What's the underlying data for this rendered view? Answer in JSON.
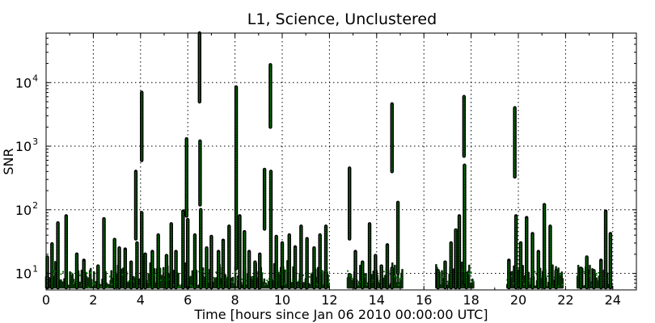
{
  "chart_data": {
    "type": "scatter",
    "title": "L1, Science, Unclustered",
    "xlabel": "Time [hours since Jan 06 2010 00:00:00 UTC]",
    "ylabel": "SNR",
    "xlim": [
      0,
      25
    ],
    "ylim": [
      5.5,
      60000
    ],
    "yscale": "log",
    "grid": true,
    "x_ticks": [
      0,
      2,
      4,
      6,
      8,
      10,
      12,
      14,
      16,
      18,
      20,
      22,
      24
    ],
    "y_ticks": [
      {
        "value": 10,
        "base": "10",
        "exp": "1"
      },
      {
        "value": 100,
        "base": "10",
        "exp": "2"
      },
      {
        "value": 1000,
        "base": "10",
        "exp": "3"
      },
      {
        "value": 10000,
        "base": "10",
        "exp": "4"
      }
    ],
    "marker_color": "#008000",
    "marker_edge_color": "#000000",
    "data_gaps": [
      [
        12.0,
        12.75
      ],
      [
        15.1,
        16.5
      ],
      [
        18.1,
        19.5
      ],
      [
        21.9,
        22.5
      ]
    ],
    "spikes": [
      {
        "x": 0.05,
        "y": [
          6,
          18
        ]
      },
      {
        "x": 0.25,
        "y": [
          6,
          29
        ]
      },
      {
        "x": 0.5,
        "y": [
          6,
          62
        ]
      },
      {
        "x": 0.85,
        "y": [
          6,
          80
        ]
      },
      {
        "x": 1.3,
        "y": [
          6,
          20
        ]
      },
      {
        "x": 1.6,
        "y": [
          6,
          16
        ]
      },
      {
        "x": 2.2,
        "y": [
          6,
          13
        ]
      },
      {
        "x": 2.45,
        "y": [
          6,
          72
        ]
      },
      {
        "x": 2.9,
        "y": [
          6,
          34
        ]
      },
      {
        "x": 3.1,
        "y": [
          6,
          25
        ]
      },
      {
        "x": 3.35,
        "y": [
          6,
          24
        ]
      },
      {
        "x": 3.6,
        "y": [
          6,
          15
        ]
      },
      {
        "x": 3.8,
        "y": [
          35,
          400
        ]
      },
      {
        "x": 3.85,
        "y": [
          6,
          30
        ]
      },
      {
        "x": 4.05,
        "y": [
          600,
          7000
        ]
      },
      {
        "x": 4.05,
        "y": [
          6,
          90
        ]
      },
      {
        "x": 4.2,
        "y": [
          6,
          20
        ]
      },
      {
        "x": 4.5,
        "y": [
          6,
          22
        ]
      },
      {
        "x": 4.75,
        "y": [
          6,
          40
        ]
      },
      {
        "x": 5.1,
        "y": [
          6,
          19
        ]
      },
      {
        "x": 5.3,
        "y": [
          6,
          60
        ]
      },
      {
        "x": 5.5,
        "y": [
          6,
          22
        ]
      },
      {
        "x": 5.8,
        "y": [
          6,
          95
        ]
      },
      {
        "x": 5.95,
        "y": [
          80,
          1300
        ]
      },
      {
        "x": 6.0,
        "y": [
          6,
          70
        ]
      },
      {
        "x": 6.3,
        "y": [
          6,
          40
        ]
      },
      {
        "x": 6.5,
        "y": [
          5000,
          60000
        ]
      },
      {
        "x": 6.52,
        "y": [
          120,
          1200
        ]
      },
      {
        "x": 6.55,
        "y": [
          6,
          100
        ]
      },
      {
        "x": 6.8,
        "y": [
          6,
          25
        ]
      },
      {
        "x": 7.0,
        "y": [
          6,
          38
        ]
      },
      {
        "x": 7.3,
        "y": [
          6,
          22
        ]
      },
      {
        "x": 7.5,
        "y": [
          6,
          33
        ]
      },
      {
        "x": 7.75,
        "y": [
          6,
          55
        ]
      },
      {
        "x": 8.05,
        "y": [
          12,
          8500
        ]
      },
      {
        "x": 8.2,
        "y": [
          6,
          80
        ]
      },
      {
        "x": 8.4,
        "y": [
          6,
          45
        ]
      },
      {
        "x": 8.6,
        "y": [
          6,
          22
        ]
      },
      {
        "x": 8.85,
        "y": [
          6,
          15
        ]
      },
      {
        "x": 9.05,
        "y": [
          6,
          20
        ]
      },
      {
        "x": 9.25,
        "y": [
          50,
          430
        ]
      },
      {
        "x": 9.5,
        "y": [
          2000,
          19000
        ]
      },
      {
        "x": 9.52,
        "y": [
          6,
          400
        ]
      },
      {
        "x": 9.75,
        "y": [
          6,
          38
        ]
      },
      {
        "x": 10.0,
        "y": [
          6,
          30
        ]
      },
      {
        "x": 10.3,
        "y": [
          6,
          40
        ]
      },
      {
        "x": 10.55,
        "y": [
          6,
          26
        ]
      },
      {
        "x": 10.8,
        "y": [
          6,
          55
        ]
      },
      {
        "x": 11.05,
        "y": [
          6,
          35
        ]
      },
      {
        "x": 11.35,
        "y": [
          6,
          25
        ]
      },
      {
        "x": 11.6,
        "y": [
          6,
          40
        ]
      },
      {
        "x": 11.85,
        "y": [
          6,
          55
        ]
      },
      {
        "x": 12.85,
        "y": [
          35,
          450
        ]
      },
      {
        "x": 13.1,
        "y": [
          6,
          22
        ]
      },
      {
        "x": 13.4,
        "y": [
          6,
          15
        ]
      },
      {
        "x": 13.7,
        "y": [
          6,
          60
        ]
      },
      {
        "x": 13.95,
        "y": [
          6,
          19
        ]
      },
      {
        "x": 14.2,
        "y": [
          6,
          13
        ]
      },
      {
        "x": 14.45,
        "y": [
          6,
          28
        ]
      },
      {
        "x": 14.65,
        "y": [
          400,
          4600
        ]
      },
      {
        "x": 14.65,
        "y": [
          6,
          12
        ]
      },
      {
        "x": 14.9,
        "y": [
          10,
          130
        ]
      },
      {
        "x": 16.6,
        "y": [
          6,
          11
        ]
      },
      {
        "x": 16.9,
        "y": [
          6,
          15
        ]
      },
      {
        "x": 17.15,
        "y": [
          6,
          30
        ]
      },
      {
        "x": 17.35,
        "y": [
          6,
          48
        ]
      },
      {
        "x": 17.5,
        "y": [
          6,
          80
        ]
      },
      {
        "x": 17.7,
        "y": [
          700,
          6000
        ]
      },
      {
        "x": 17.72,
        "y": [
          7,
          500
        ]
      },
      {
        "x": 17.8,
        "y": [
          6,
          10
        ]
      },
      {
        "x": 19.6,
        "y": [
          6,
          16
        ]
      },
      {
        "x": 19.85,
        "y": [
          330,
          4000
        ]
      },
      {
        "x": 19.9,
        "y": [
          6,
          80
        ]
      },
      {
        "x": 20.1,
        "y": [
          6,
          30
        ]
      },
      {
        "x": 20.35,
        "y": [
          6,
          75
        ]
      },
      {
        "x": 20.6,
        "y": [
          6,
          42
        ]
      },
      {
        "x": 20.85,
        "y": [
          6,
          22
        ]
      },
      {
        "x": 21.1,
        "y": [
          6,
          120
        ]
      },
      {
        "x": 21.35,
        "y": [
          6,
          55
        ]
      },
      {
        "x": 21.6,
        "y": [
          6,
          11
        ]
      },
      {
        "x": 22.65,
        "y": [
          6,
          12
        ]
      },
      {
        "x": 22.9,
        "y": [
          6,
          18
        ]
      },
      {
        "x": 23.2,
        "y": [
          6,
          11
        ]
      },
      {
        "x": 23.5,
        "y": [
          6,
          16
        ]
      },
      {
        "x": 23.7,
        "y": [
          6,
          95
        ]
      },
      {
        "x": 23.9,
        "y": [
          6,
          42
        ]
      }
    ]
  }
}
